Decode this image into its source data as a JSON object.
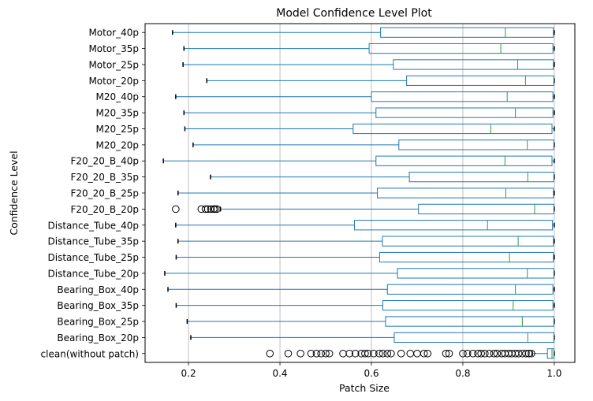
{
  "chart_data": {
    "type": "boxplot-horizontal",
    "title": "Model Confidence Level Plot",
    "xlabel": "Patch Size",
    "ylabel": "Confidence Level",
    "xlim": [
      0.105,
      1.045
    ],
    "xticks": [
      "0.2",
      "0.4",
      "0.6",
      "0.8",
      "1.0"
    ],
    "xtick_values": [
      0.2,
      0.4,
      0.6,
      0.8,
      1.0
    ],
    "grid": true,
    "colors": {
      "box": "#1f77b4",
      "median": "#2ca02c",
      "outlier": "#000000",
      "grid": "#b0b0b0"
    },
    "boxes": [
      {
        "label": "Motor_40p",
        "whisker_low": 0.165,
        "q1": 0.62,
        "median": 0.893,
        "q3": 0.998,
        "whisker_high": 1.0,
        "outliers": []
      },
      {
        "label": "Motor_35p",
        "whisker_low": 0.19,
        "q1": 0.595,
        "median": 0.883,
        "q3": 0.997,
        "whisker_high": 1.0,
        "outliers": []
      },
      {
        "label": "Motor_25p",
        "whisker_low": 0.188,
        "q1": 0.648,
        "median": 0.92,
        "q3": 0.998,
        "whisker_high": 1.0,
        "outliers": []
      },
      {
        "label": "Motor_20p",
        "whisker_low": 0.24,
        "q1": 0.677,
        "median": 0.937,
        "q3": 0.999,
        "whisker_high": 1.0,
        "outliers": []
      },
      {
        "label": "M20_40p",
        "whisker_low": 0.172,
        "q1": 0.6,
        "median": 0.897,
        "q3": 0.997,
        "whisker_high": 1.0,
        "outliers": []
      },
      {
        "label": "M20_35p",
        "whisker_low": 0.19,
        "q1": 0.61,
        "median": 0.915,
        "q3": 0.997,
        "whisker_high": 1.0,
        "outliers": []
      },
      {
        "label": "M20_25p",
        "whisker_low": 0.192,
        "q1": 0.56,
        "median": 0.861,
        "q3": 0.995,
        "whisker_high": 1.0,
        "outliers": []
      },
      {
        "label": "M20_20p",
        "whisker_low": 0.21,
        "q1": 0.66,
        "median": 0.941,
        "q3": 0.999,
        "whisker_high": 1.0,
        "outliers": []
      },
      {
        "label": "F20_20_B_40p",
        "whisker_low": 0.145,
        "q1": 0.61,
        "median": 0.892,
        "q3": 0.995,
        "whisker_high": 1.0,
        "outliers": []
      },
      {
        "label": "F20_20_B_35p",
        "whisker_low": 0.248,
        "q1": 0.683,
        "median": 0.942,
        "q3": 0.999,
        "whisker_high": 1.0,
        "outliers": []
      },
      {
        "label": "F20_20_B_25p",
        "whisker_low": 0.177,
        "q1": 0.613,
        "median": 0.894,
        "q3": 0.998,
        "whisker_high": 1.0,
        "outliers": []
      },
      {
        "label": "F20_20_B_20p",
        "whisker_low": 0.27,
        "q1": 0.703,
        "median": 0.957,
        "q3": 0.999,
        "whisker_high": 1.0,
        "outliers": [
          0.172,
          0.228,
          0.237,
          0.242,
          0.249,
          0.255,
          0.258,
          0.262
        ]
      },
      {
        "label": "Distance_Tube_40p",
        "whisker_low": 0.172,
        "q1": 0.563,
        "median": 0.854,
        "q3": 0.996,
        "whisker_high": 1.0,
        "outliers": []
      },
      {
        "label": "Distance_Tube_35p",
        "whisker_low": 0.177,
        "q1": 0.624,
        "median": 0.921,
        "q3": 0.998,
        "whisker_high": 1.0,
        "outliers": []
      },
      {
        "label": "Distance_Tube_25p",
        "whisker_low": 0.173,
        "q1": 0.618,
        "median": 0.902,
        "q3": 0.998,
        "whisker_high": 1.0,
        "outliers": []
      },
      {
        "label": "Distance_Tube_20p",
        "whisker_low": 0.148,
        "q1": 0.657,
        "median": 0.941,
        "q3": 0.999,
        "whisker_high": 1.0,
        "outliers": []
      },
      {
        "label": "Bearing_Box_40p",
        "whisker_low": 0.155,
        "q1": 0.635,
        "median": 0.915,
        "q3": 0.997,
        "whisker_high": 1.0,
        "outliers": []
      },
      {
        "label": "Bearing_Box_35p",
        "whisker_low": 0.173,
        "q1": 0.625,
        "median": 0.91,
        "q3": 0.997,
        "whisker_high": 1.0,
        "outliers": []
      },
      {
        "label": "Bearing_Box_25p",
        "whisker_low": 0.197,
        "q1": 0.631,
        "median": 0.93,
        "q3": 0.999,
        "whisker_high": 1.0,
        "outliers": []
      },
      {
        "label": "Bearing_Box_20p",
        "whisker_low": 0.205,
        "q1": 0.65,
        "median": 0.942,
        "q3": 0.999,
        "whisker_high": 1.0,
        "outliers": []
      },
      {
        "label": "clean(without patch)",
        "whisker_low": 0.952,
        "q1": 0.985,
        "median": 0.995,
        "q3": 0.999,
        "whisker_high": 1.0,
        "outliers": [
          0.378,
          0.418,
          0.445,
          0.468,
          0.48,
          0.49,
          0.5,
          0.508,
          0.538,
          0.552,
          0.565,
          0.578,
          0.586,
          0.593,
          0.605,
          0.617,
          0.625,
          0.635,
          0.643,
          0.665,
          0.685,
          0.7,
          0.715,
          0.723,
          0.763,
          0.77,
          0.8,
          0.81,
          0.822,
          0.833,
          0.84,
          0.848,
          0.858,
          0.868,
          0.875,
          0.885,
          0.892,
          0.9,
          0.907,
          0.915,
          0.922,
          0.93,
          0.938,
          0.944,
          0.95
        ]
      }
    ]
  }
}
